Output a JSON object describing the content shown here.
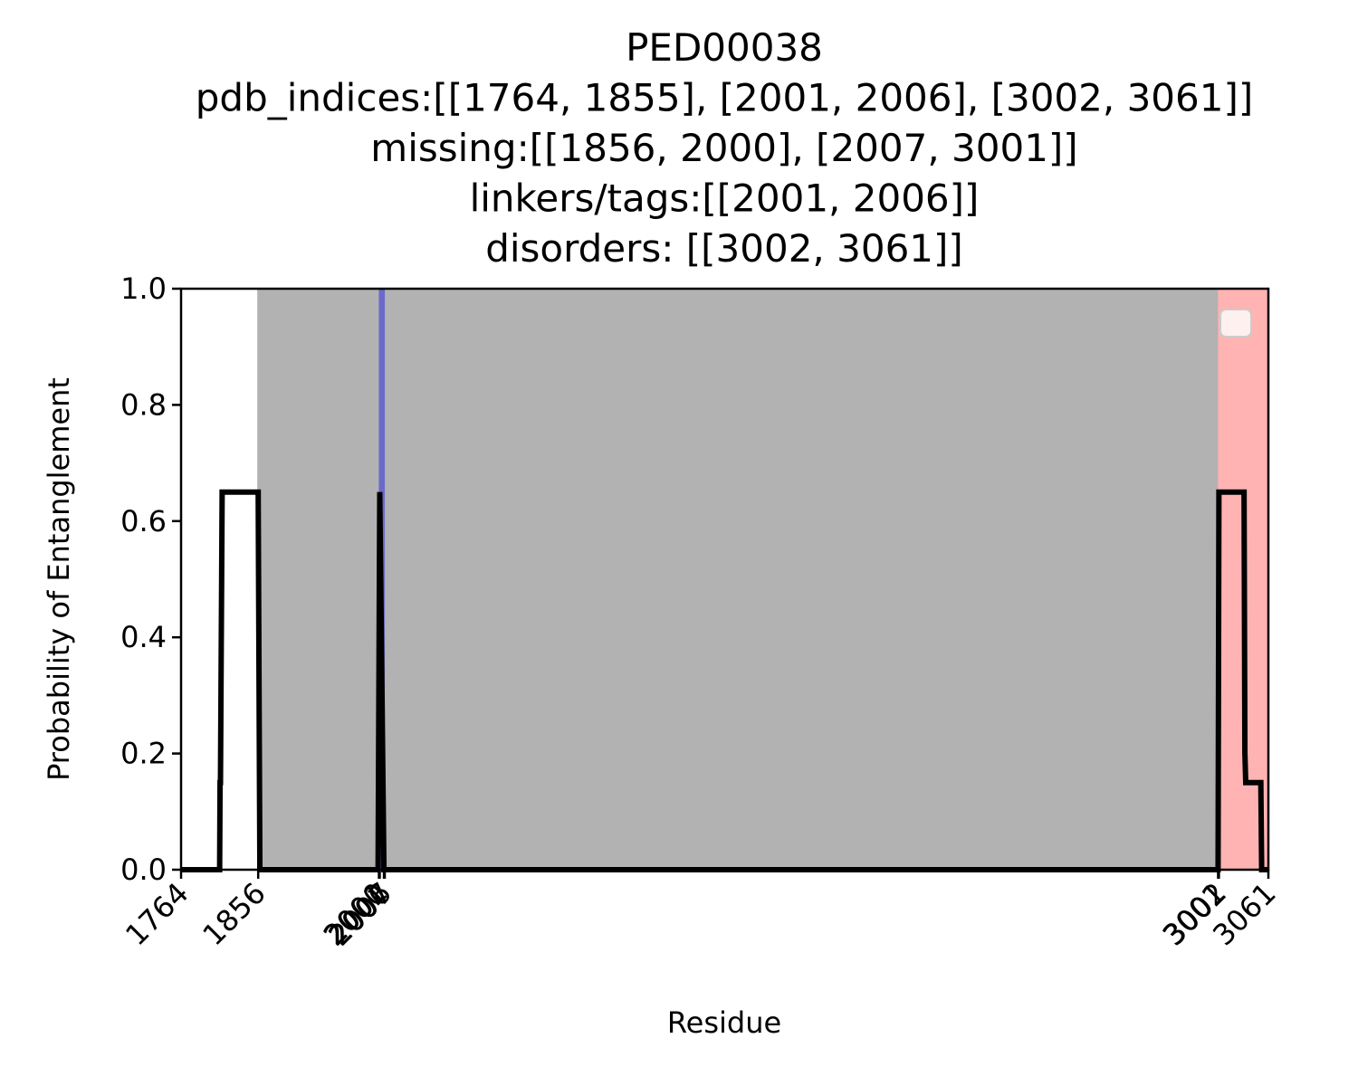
{
  "chart_data": {
    "type": "line",
    "title": [
      "PED00038",
      "pdb_indices:[[1764, 1855], [2001, 2006], [3002, 3061]]",
      "missing:[[1856, 2000], [2007, 3001]]",
      "linkers/tags:[[2001, 2006]]",
      "disorders: [[3002, 3061]]"
    ],
    "xlabel": "Residue",
    "ylabel": "Probability of Entanglement",
    "xlim": [
      1764,
      3061
    ],
    "ylim": [
      0.0,
      1.0
    ],
    "x_ticks": [
      1764,
      1856,
      2000,
      2001,
      2006,
      2007,
      3001,
      3002,
      3061
    ],
    "y_ticks": [
      "0.0",
      "0.2",
      "0.4",
      "0.6",
      "0.8",
      "1.0"
    ],
    "legend": "top-right (empty)",
    "grid": false,
    "regions": [
      {
        "kind": "missing",
        "x0": 1856,
        "x1": 2000,
        "color": "#b2b2b2"
      },
      {
        "kind": "missing",
        "x0": 2007,
        "x1": 3001,
        "color": "#b2b2b2"
      },
      {
        "kind": "linkers/tags",
        "x0": 2001,
        "x1": 2006,
        "color": "#6a6acb"
      },
      {
        "kind": "disorders",
        "x0": 3002,
        "x1": 3061,
        "color": "#ffb3b3"
      }
    ],
    "series": [
      {
        "color": "#000000",
        "points": [
          [
            1764,
            0.0
          ],
          [
            1810,
            0.0
          ],
          [
            1810.5,
            0.15
          ],
          [
            1811,
            0.15
          ],
          [
            1813,
            0.65
          ],
          [
            1856,
            0.65
          ],
          [
            1858,
            0.0
          ],
          [
            1999,
            0.0
          ],
          [
            2001,
            0.65
          ],
          [
            2006,
            0.0
          ],
          [
            3001,
            0.0
          ],
          [
            3002,
            0.65
          ],
          [
            3032,
            0.65
          ],
          [
            3033,
            0.2
          ],
          [
            3034,
            0.15
          ],
          [
            3052,
            0.15
          ],
          [
            3053,
            0.0
          ],
          [
            3061,
            0.0
          ]
        ]
      }
    ]
  }
}
